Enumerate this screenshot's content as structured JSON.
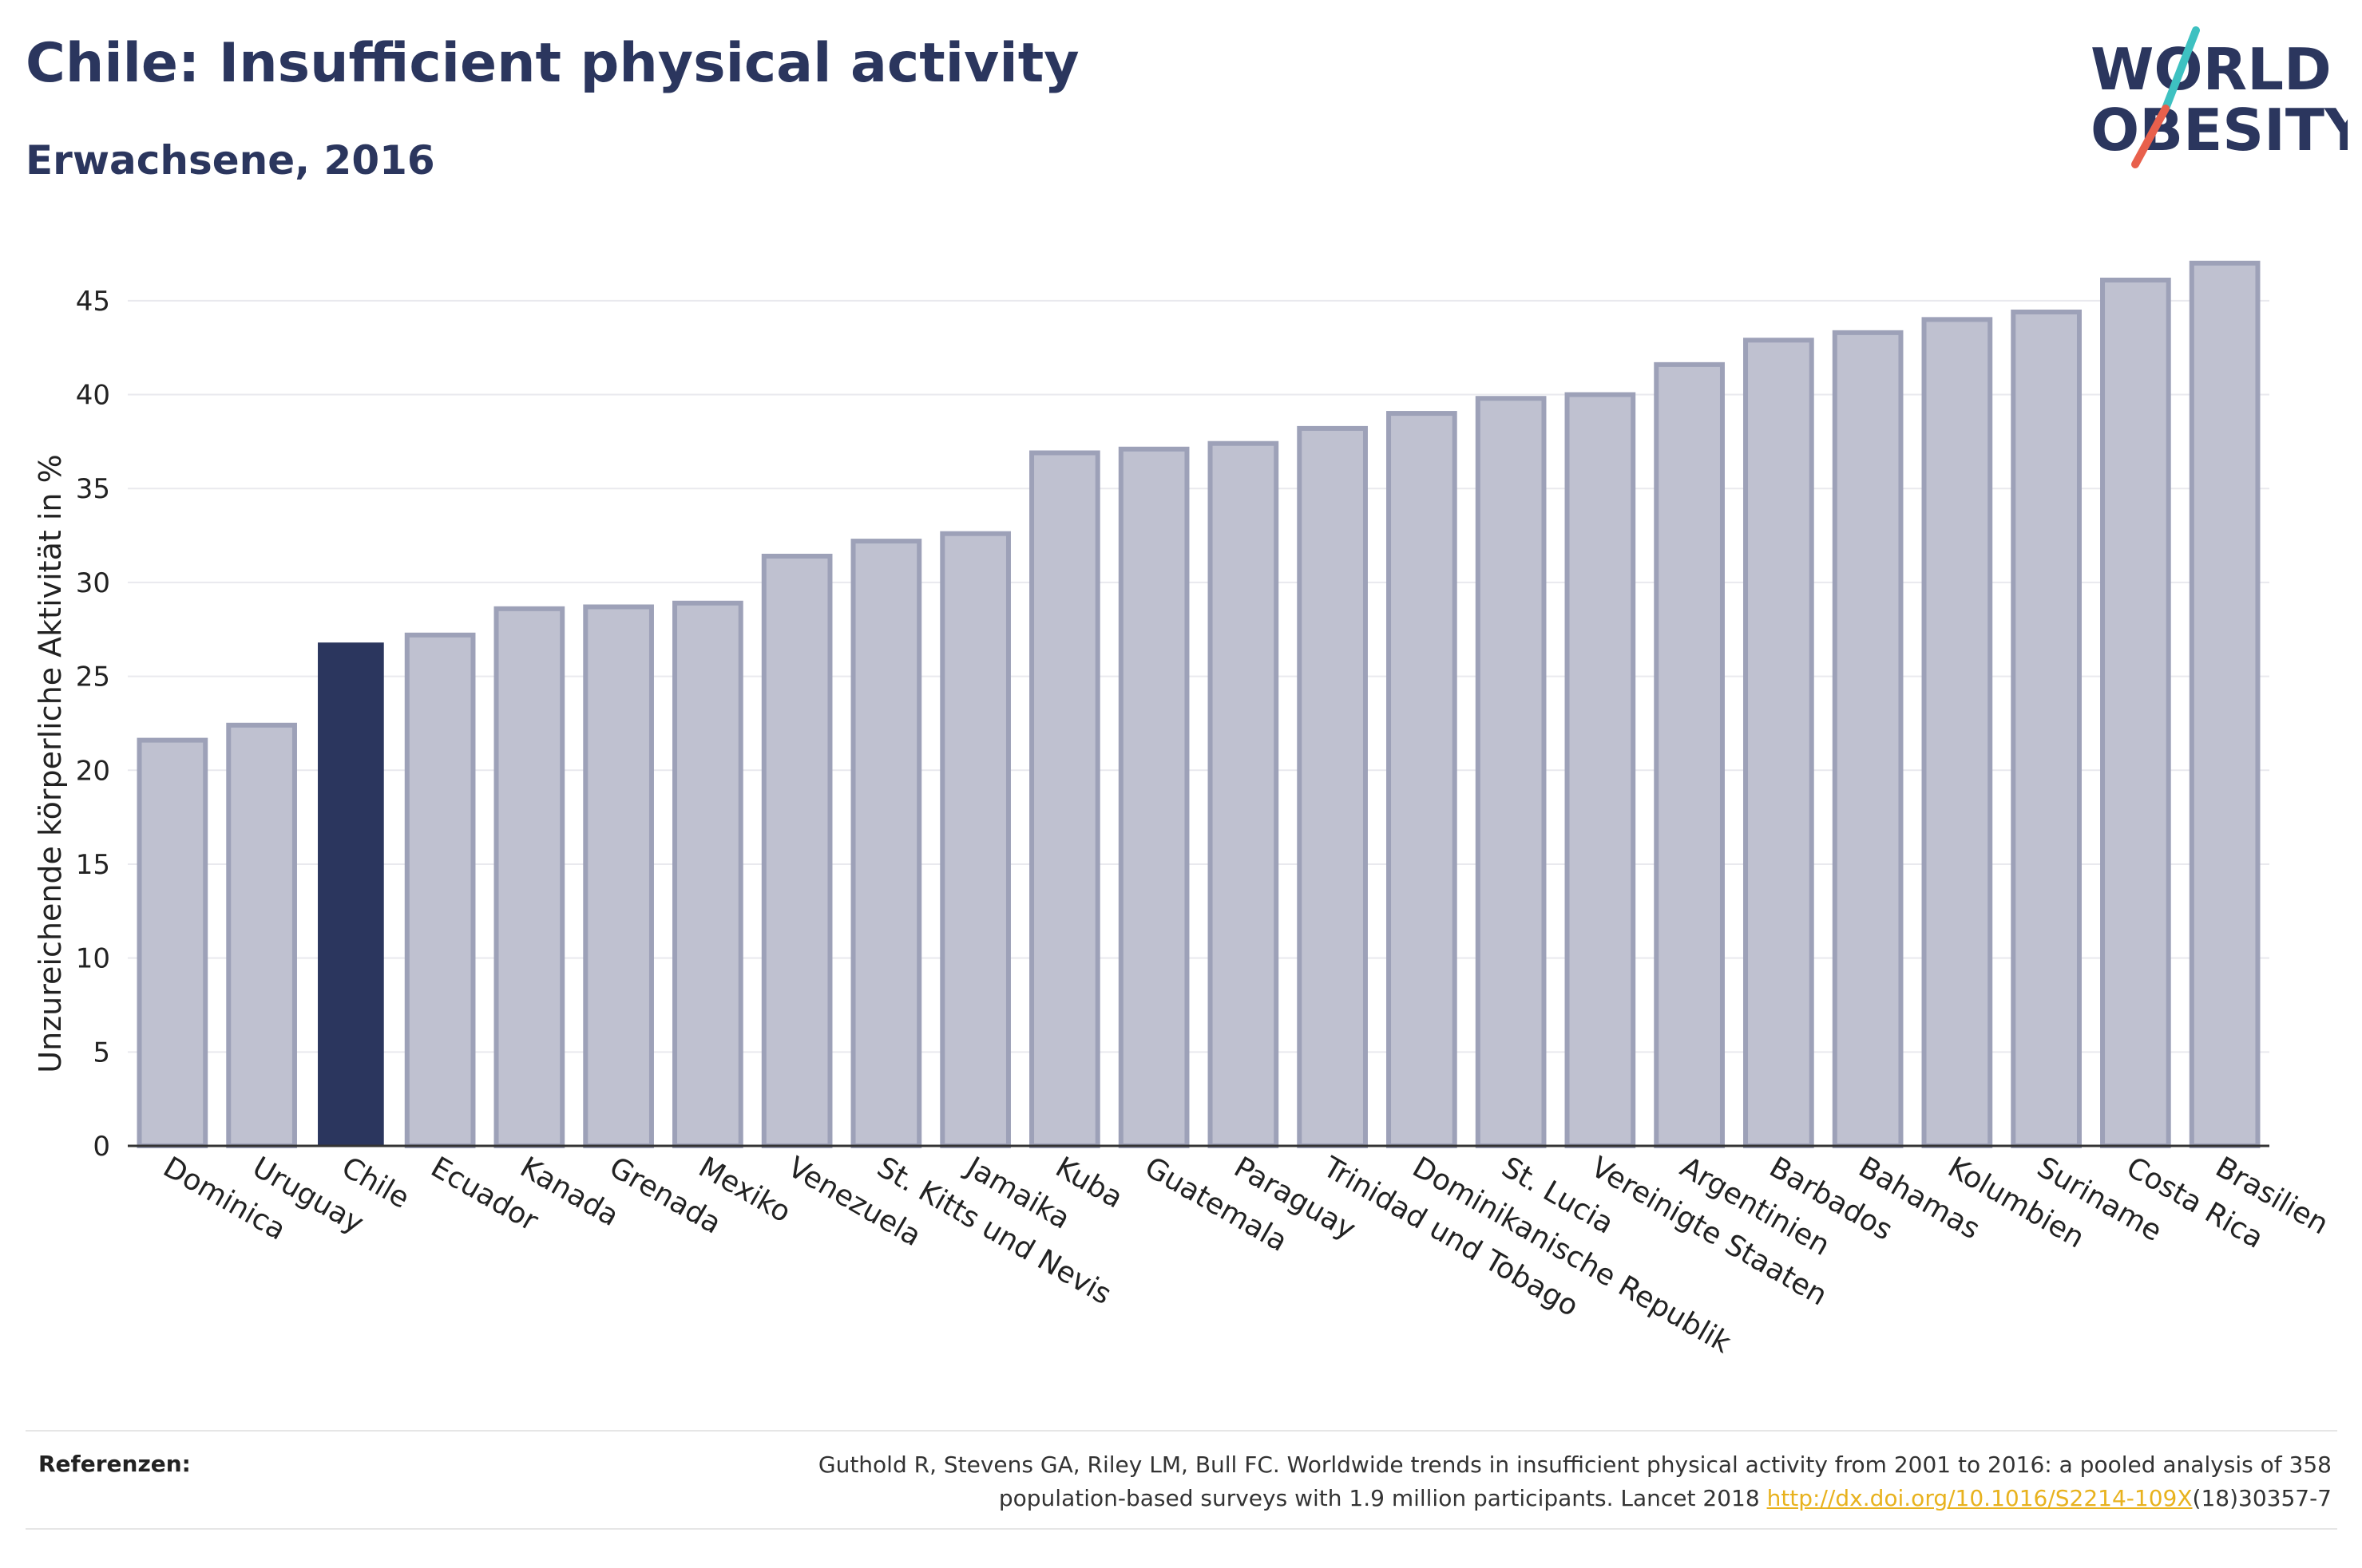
{
  "header": {
    "title": "Chile: Insufficient physical activity",
    "subtitle": "Erwachsene, 2016"
  },
  "logo": {
    "line1": "WORLD",
    "line2": "OBESITY",
    "colors": {
      "text": "#2b365e",
      "slash_top": "#3ec1c1",
      "slash_bottom": "#e8604c"
    }
  },
  "colors": {
    "bar_default": "#bfc1d0",
    "bar_default_border": "#9da1b8",
    "bar_highlight": "#2b365e",
    "grid": "#e9e9ee",
    "axis": "#333333"
  },
  "chart_data": {
    "type": "bar",
    "ylabel": "Unzureichende körperliche Aktivität in %",
    "ylim": [
      0,
      47.5
    ],
    "yticks": [
      0,
      5,
      10,
      15,
      20,
      25,
      30,
      35,
      40,
      45
    ],
    "grid": true,
    "highlight": "Chile",
    "categories": [
      "Dominica",
      "Uruguay",
      "Chile",
      "Ecuador",
      "Kanada",
      "Grenada",
      "Mexiko",
      "Venezuela",
      "St. Kitts und Nevis",
      "Jamaika",
      "Kuba",
      "Guatemala",
      "Paraguay",
      "Trinidad und Tobago",
      "Dominikanische Republik",
      "St. Lucia",
      "Vereinigte Staaten",
      "Argentinien",
      "Barbados",
      "Bahamas",
      "Kolumbien",
      "Suriname",
      "Costa Rica",
      "Brasilien"
    ],
    "values": [
      21.6,
      22.4,
      26.8,
      27.2,
      28.6,
      28.7,
      28.9,
      31.4,
      32.2,
      32.6,
      36.9,
      37.1,
      37.4,
      38.2,
      39.0,
      39.8,
      40.0,
      41.6,
      42.9,
      43.3,
      44.0,
      44.4,
      46.1,
      47.0
    ]
  },
  "references": {
    "label": "Referenzen:",
    "line1": "Guthold R, Stevens GA, Riley LM, Bull FC. Worldwide trends in insufficient physical activity from 2001 to 2016: a pooled analysis of 358",
    "line2_pre": "population-based surveys with 1.9 million participants. Lancet 2018 ",
    "link": "http://dx.doi.org/10.1016/S2214-109X",
    "line2_post": "(18)30357-7"
  }
}
